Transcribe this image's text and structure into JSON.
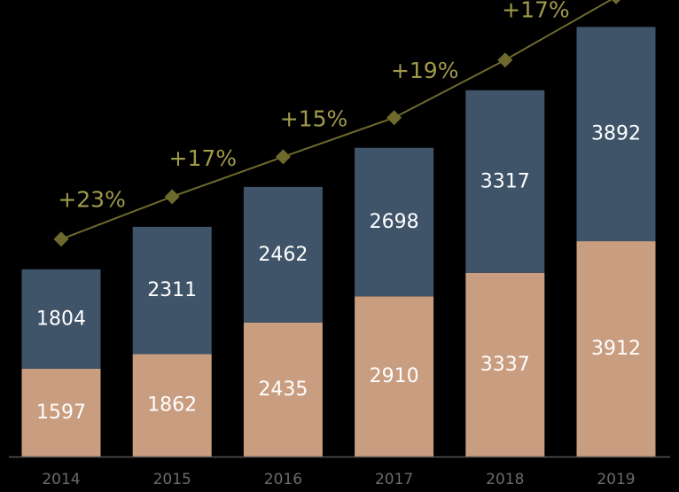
{
  "chart_data": {
    "type": "bar",
    "stacked": true,
    "categories": [
      "2014",
      "2015",
      "2016",
      "2017",
      "2018",
      "2019"
    ],
    "series": [
      {
        "values": [
          1597,
          1862,
          2435,
          2910,
          3337,
          3912
        ],
        "color": "#c99d80"
      },
      {
        "values": [
          1804,
          2311,
          2462,
          2698,
          3317,
          3892
        ],
        "color": "#3f5468"
      }
    ],
    "growth_labels": [
      "+23%",
      "+17%",
      "+15%",
      "+19%",
      "+17%"
    ],
    "trend_color": "#6e6a2e",
    "axis_color": "#555555",
    "grid": false,
    "legend": "none",
    "ylim": [
      0,
      8000
    ]
  }
}
